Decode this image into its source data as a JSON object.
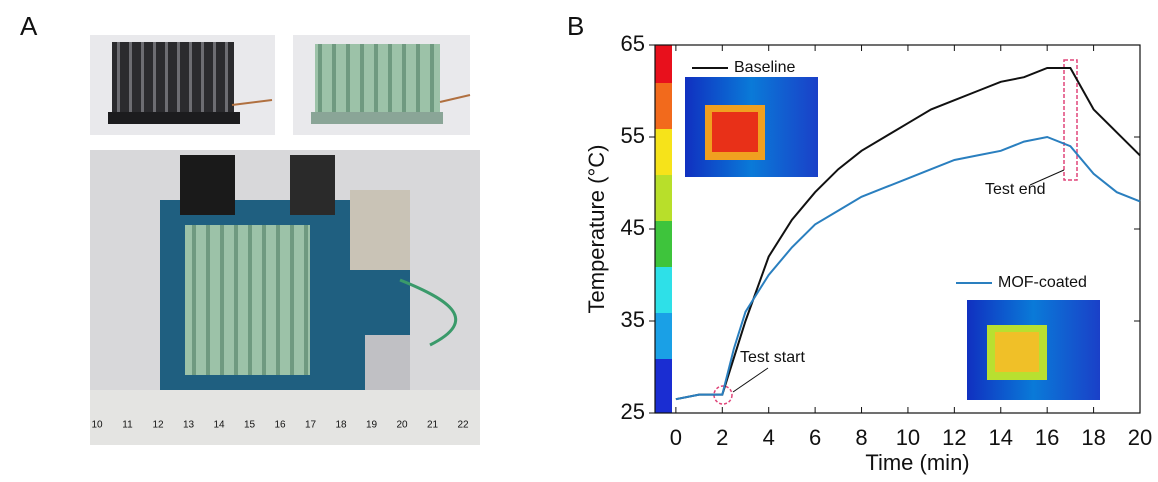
{
  "panel_labels": [
    "A",
    "B"
  ],
  "photo": {
    "ruler_labels": [
      "10",
      "11",
      "12",
      "13",
      "14",
      "15",
      "16",
      "17",
      "18",
      "19",
      "20",
      "21",
      "22"
    ]
  },
  "chart_data": {
    "type": "line",
    "xlabel": "Time (min)",
    "ylabel": "Temperature (°C)",
    "x": [
      0,
      1,
      2,
      2.5,
      3,
      4,
      5,
      6,
      7,
      8,
      9,
      10,
      11,
      12,
      13,
      14,
      15,
      16,
      17,
      18,
      19,
      20
    ],
    "series": [
      {
        "name": "Baseline",
        "color": "#111111",
        "values": [
          26.5,
          27,
          27,
          31,
          35,
          42,
          46,
          49,
          51.5,
          53.5,
          55,
          56.5,
          58,
          59,
          60,
          61,
          61.5,
          62.5,
          62.5,
          58,
          55.5,
          53
        ]
      },
      {
        "name": "MOF-coated",
        "color": "#2a7fbf",
        "values": [
          26.5,
          27,
          27,
          32,
          36,
          40,
          43,
          45.5,
          47,
          48.5,
          49.5,
          50.5,
          51.5,
          52.5,
          53,
          53.5,
          54.5,
          55,
          54,
          51,
          49,
          48
        ]
      }
    ],
    "annotations": [
      "Test start",
      "Test end"
    ],
    "xlim": [
      -0.9,
      20
    ],
    "ylim": [
      25,
      65
    ],
    "xticks": [
      0,
      2,
      4,
      6,
      8,
      10,
      12,
      14,
      16,
      18,
      20
    ],
    "yticks": [
      25,
      35,
      45,
      55,
      65
    ]
  }
}
